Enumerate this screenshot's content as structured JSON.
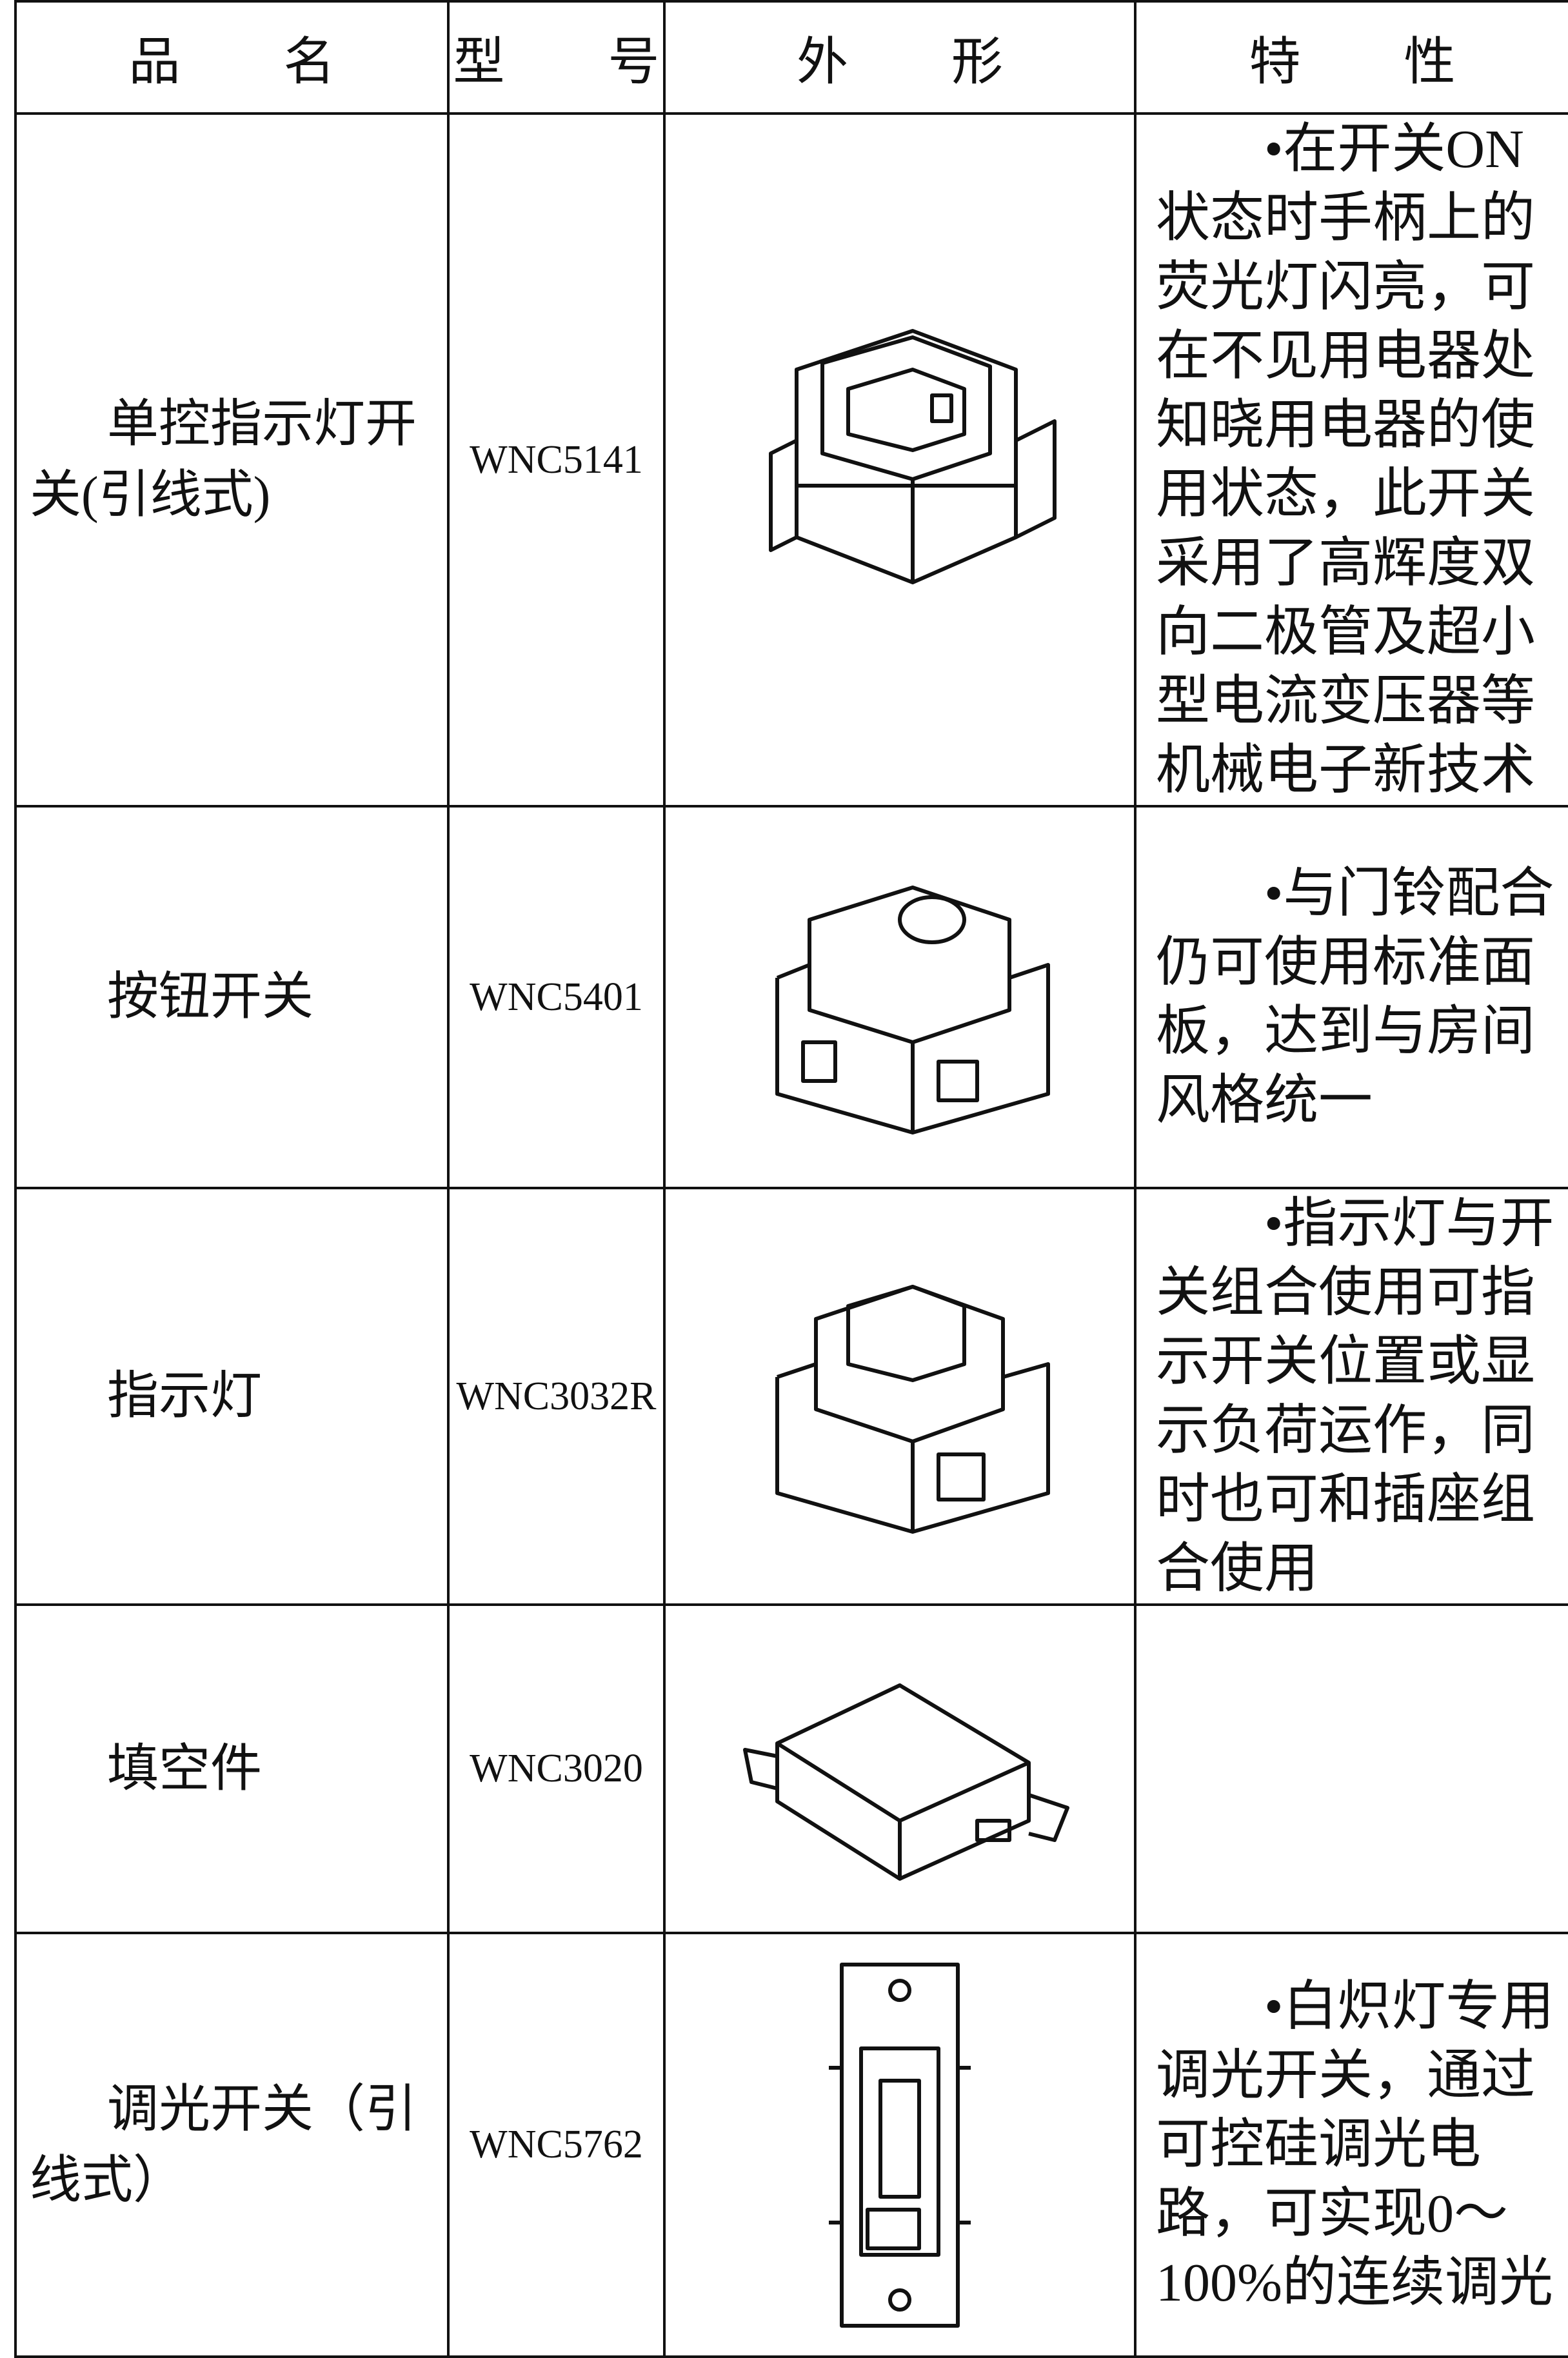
{
  "table": {
    "header": [
      "品　　名",
      "型　　号",
      "外　　形",
      "特　　性"
    ],
    "rows": [
      {
        "name": "单控指示灯开关(引线式)",
        "model": "WNC5141",
        "feature": "•在开关ON状态时手柄上的荧光灯闪亮，可在不见用电器处知晓用电器的使用状态，此开关采用了高辉度双向二极管及超小型电流变压器等机械电子新技术"
      },
      {
        "name": "按钮开关",
        "model": "WNC5401",
        "feature": "•与门铃配合仍可使用标准面板，达到与房间风格统一"
      },
      {
        "name": "指示灯",
        "model": "WNC3032R",
        "feature": "•指示灯与开关组合使用可指示开关位置或显示负荷运作，同时也可和插座组合使用"
      },
      {
        "name": "填空件",
        "model": "WNC3020"
      },
      {
        "name": "调光开关（引线式）",
        "model": "WNC5762",
        "feature": "•白炽灯专用调光开关，通过可控硅调光电路，可实现0～100%的连续调光"
      }
    ]
  }
}
